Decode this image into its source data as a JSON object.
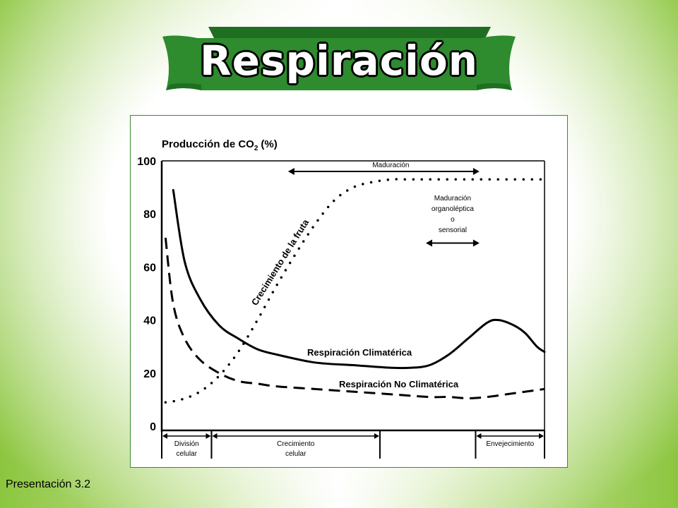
{
  "slide": {
    "title": "Respiración",
    "footer": "Presentación 3.2"
  },
  "colors": {
    "banner_green": "#2e8b2e",
    "banner_dark": "#1f6e22",
    "panel_border": "#3a8a2e"
  },
  "chart_data": {
    "type": "line",
    "title": "Producción de CO",
    "title_subscript": "2",
    "title_unit": "(%)",
    "ylim": [
      0,
      100
    ],
    "y_ticks": [
      "0",
      "20",
      "40",
      "60",
      "80",
      "100"
    ],
    "xlim": [
      0,
      100
    ],
    "series": [
      {
        "name": "Respiración Climatérica",
        "style": "solid",
        "x": [
          3,
          6,
          10,
          15,
          20,
          25,
          30,
          40,
          50,
          60,
          65,
          70,
          75,
          80,
          85,
          88,
          92,
          95,
          98,
          100
        ],
        "y": [
          89,
          62,
          48,
          38,
          33,
          29,
          27,
          24,
          23,
          22,
          22,
          23,
          27,
          33,
          39,
          40,
          38,
          35,
          30,
          28
        ]
      },
      {
        "name": "Respiración No Climatérica",
        "style": "dashed",
        "x": [
          1,
          3,
          6,
          10,
          15,
          20,
          25,
          30,
          40,
          50,
          60,
          70,
          75,
          80,
          85,
          90,
          95,
          100
        ],
        "y": [
          71,
          46,
          33,
          25,
          20,
          17,
          16,
          15,
          14,
          13,
          12,
          11,
          11,
          10.5,
          11,
          12,
          13,
          14
        ]
      },
      {
        "name": "Crecimiento de la fruta",
        "style": "dotted",
        "x": [
          1,
          5,
          10,
          15,
          20,
          25,
          30,
          35,
          40,
          45,
          50,
          55,
          60,
          65,
          70,
          80,
          90,
          100
        ],
        "y": [
          9,
          10,
          13,
          19,
          28,
          40,
          53,
          65,
          76,
          85,
          90,
          92,
          93,
          93,
          93,
          93,
          93,
          93
        ]
      }
    ],
    "annotations": {
      "maduracion": {
        "label": "Maduración",
        "x_start": 33,
        "x_end": 83,
        "y": 96
      },
      "organoleptica": {
        "lines": [
          "Maduración",
          "organoléptica",
          "o",
          "sensorial"
        ],
        "x_start": 69,
        "x_end": 83,
        "y": 69
      }
    },
    "stages": [
      {
        "lines": [
          "División",
          "celular"
        ],
        "x_start": 0,
        "x_end": 13
      },
      {
        "lines": [
          "Crecimiento",
          "celular"
        ],
        "x_start": 13,
        "x_end": 57
      },
      {
        "lines": [
          "Envejecimiento"
        ],
        "x_start": 82,
        "x_end": 100
      }
    ],
    "grid": false,
    "legend": "none"
  }
}
